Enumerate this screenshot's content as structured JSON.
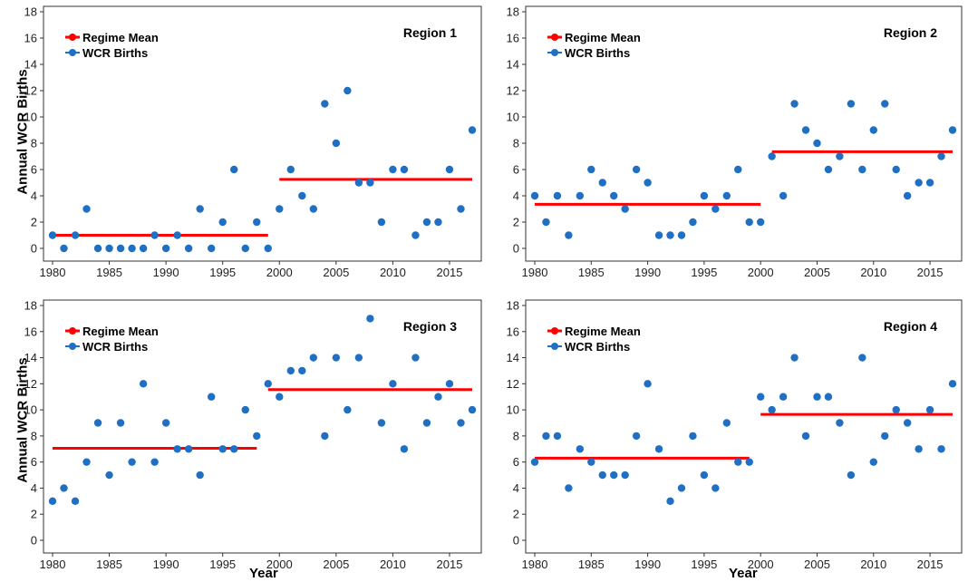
{
  "figure": {
    "ylabel": "Annual WCR Births",
    "xlabel": "Year"
  },
  "legend": {
    "mean_label": "Regime Mean",
    "births_label": "WCR Births",
    "mean_color": "#ff0000",
    "births_color": "#1f6fc5"
  },
  "chart_data": [
    {
      "type": "scatter",
      "title": "Region 1",
      "xlabel": "",
      "ylabel": "Annual WCR Births",
      "xlim": [
        1980,
        2017
      ],
      "ylim": [
        0,
        18
      ],
      "xticks": [
        1980,
        1985,
        1990,
        1995,
        2000,
        2005,
        2010,
        2015
      ],
      "yticks": [
        0,
        2,
        4,
        6,
        8,
        10,
        12,
        14,
        16,
        18
      ],
      "grid": false,
      "legend_position": "top-left",
      "series": [
        {
          "name": "WCR Births",
          "x": [
            1980,
            1981,
            1982,
            1983,
            1984,
            1985,
            1986,
            1987,
            1988,
            1989,
            1990,
            1991,
            1992,
            1993,
            1994,
            1995,
            1996,
            1997,
            1998,
            1999,
            2000,
            2001,
            2002,
            2003,
            2004,
            2005,
            2006,
            2007,
            2008,
            2009,
            2010,
            2011,
            2012,
            2013,
            2014,
            2015,
            2016,
            2017
          ],
          "y": [
            1,
            0,
            1,
            3,
            0,
            0,
            0,
            0,
            0,
            1,
            0,
            1,
            0,
            3,
            0,
            2,
            6,
            0,
            2,
            0,
            3,
            6,
            4,
            3,
            11,
            8,
            12,
            5,
            5,
            2,
            6,
            6,
            1,
            2,
            2,
            6,
            3,
            9
          ]
        }
      ],
      "regime_means": [
        {
          "name": "Regime Mean",
          "x_start": 1980,
          "x_end": 1999,
          "y": 1.0
        },
        {
          "name": "Regime Mean",
          "x_start": 2000,
          "x_end": 2017,
          "y": 5.25
        }
      ]
    },
    {
      "type": "scatter",
      "title": "Region 2",
      "xlabel": "",
      "ylabel": "",
      "xlim": [
        1980,
        2017
      ],
      "ylim": [
        0,
        18
      ],
      "xticks": [
        1980,
        1985,
        1990,
        1995,
        2000,
        2005,
        2010,
        2015
      ],
      "yticks": [
        0,
        2,
        4,
        6,
        8,
        10,
        12,
        14,
        16,
        18
      ],
      "grid": false,
      "legend_position": "top-left",
      "series": [
        {
          "name": "WCR Births",
          "x": [
            1980,
            1981,
            1982,
            1983,
            1984,
            1985,
            1986,
            1987,
            1988,
            1989,
            1990,
            1991,
            1992,
            1993,
            1994,
            1995,
            1996,
            1997,
            1998,
            1999,
            2000,
            2001,
            2002,
            2003,
            2004,
            2005,
            2006,
            2007,
            2008,
            2009,
            2010,
            2011,
            2012,
            2013,
            2014,
            2015,
            2016,
            2017
          ],
          "y": [
            4,
            2,
            4,
            1,
            4,
            6,
            5,
            4,
            3,
            6,
            5,
            1,
            1,
            1,
            2,
            4,
            3,
            4,
            6,
            2,
            2,
            7,
            4,
            11,
            9,
            8,
            6,
            7,
            11,
            6,
            9,
            11,
            6,
            4,
            5,
            5,
            7,
            9
          ]
        }
      ],
      "regime_means": [
        {
          "name": "Regime Mean",
          "x_start": 1980,
          "x_end": 2000,
          "y": 3.35
        },
        {
          "name": "Regime Mean",
          "x_start": 2001,
          "x_end": 2017,
          "y": 7.35
        }
      ]
    },
    {
      "type": "scatter",
      "title": "Region 3",
      "xlabel": "",
      "ylabel": "Annual WCR Births",
      "xlim": [
        1980,
        2017
      ],
      "ylim": [
        0,
        18
      ],
      "xticks": [
        1980,
        1985,
        1990,
        1995,
        2000,
        2005,
        2010,
        2015
      ],
      "yticks": [
        0,
        2,
        4,
        6,
        8,
        10,
        12,
        14,
        16,
        18
      ],
      "grid": false,
      "legend_position": "top-left",
      "series": [
        {
          "name": "WCR Births",
          "x": [
            1980,
            1981,
            1982,
            1983,
            1984,
            1985,
            1986,
            1987,
            1988,
            1989,
            1990,
            1991,
            1992,
            1993,
            1994,
            1995,
            1996,
            1997,
            1998,
            1999,
            2000,
            2001,
            2002,
            2003,
            2004,
            2005,
            2006,
            2007,
            2008,
            2009,
            2010,
            2011,
            2012,
            2013,
            2014,
            2015,
            2016,
            2017
          ],
          "y": [
            3,
            4,
            3,
            6,
            9,
            5,
            9,
            6,
            12,
            6,
            9,
            7,
            7,
            5,
            11,
            7,
            7,
            10,
            8,
            12,
            11,
            13,
            13,
            14,
            8,
            14,
            10,
            14,
            17,
            9,
            12,
            7,
            14,
            9,
            11,
            12,
            9,
            10
          ]
        }
      ],
      "regime_means": [
        {
          "name": "Regime Mean",
          "x_start": 1980,
          "x_end": 1998,
          "y": 7.05
        },
        {
          "name": "Regime Mean",
          "x_start": 1999,
          "x_end": 2017,
          "y": 11.55
        }
      ]
    },
    {
      "type": "scatter",
      "title": "Region 4",
      "xlabel": "Year",
      "ylabel": "",
      "xlim": [
        1980,
        2017
      ],
      "ylim": [
        0,
        18
      ],
      "xticks": [
        1980,
        1985,
        1990,
        1995,
        2000,
        2005,
        2010,
        2015
      ],
      "yticks": [
        0,
        2,
        4,
        6,
        8,
        10,
        12,
        14,
        16,
        18
      ],
      "grid": false,
      "legend_position": "top-left",
      "series": [
        {
          "name": "WCR Births",
          "x": [
            1980,
            1981,
            1982,
            1983,
            1984,
            1985,
            1986,
            1987,
            1988,
            1989,
            1990,
            1991,
            1992,
            1993,
            1994,
            1995,
            1996,
            1997,
            1998,
            1999,
            2000,
            2001,
            2002,
            2003,
            2004,
            2005,
            2006,
            2007,
            2008,
            2009,
            2010,
            2011,
            2012,
            2013,
            2014,
            2015,
            2016,
            2017
          ],
          "y": [
            6,
            8,
            8,
            4,
            7,
            6,
            5,
            5,
            5,
            8,
            12,
            7,
            3,
            4,
            8,
            5,
            4,
            9,
            6,
            6,
            11,
            10,
            11,
            14,
            8,
            11,
            11,
            9,
            5,
            14,
            6,
            8,
            10,
            9,
            7,
            10,
            7,
            12
          ]
        }
      ],
      "regime_means": [
        {
          "name": "Regime Mean",
          "x_start": 1980,
          "x_end": 1999,
          "y": 6.3
        },
        {
          "name": "Regime Mean",
          "x_start": 2000,
          "x_end": 2017,
          "y": 9.65
        }
      ]
    }
  ]
}
